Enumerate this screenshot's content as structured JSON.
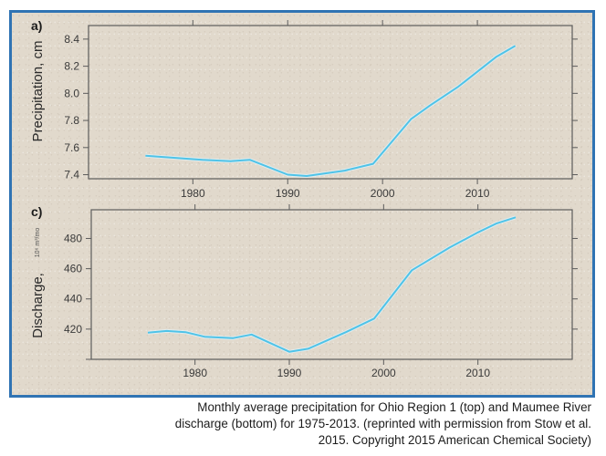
{
  "chart_data": [
    {
      "type": "line",
      "panel_label": "a)",
      "title": "",
      "xlabel": "",
      "ylabel": "Precipitation, cm",
      "x_ticks": [
        1980,
        1990,
        2000,
        2010
      ],
      "y_ticks": [
        "8.4",
        "8.2",
        "8.0",
        "7.8",
        "7.6",
        "7.4"
      ],
      "xlim": [
        1969,
        2020
      ],
      "ylim": [
        7.37,
        8.5
      ],
      "grid": false,
      "series": [
        {
          "name": "Precipitation",
          "color": "#4fc3e8",
          "x": [
            1975,
            1977,
            1981,
            1984,
            1986,
            1990,
            1992,
            1996,
            1999,
            2003,
            2005,
            2008,
            2012,
            2014
          ],
          "y": [
            7.54,
            7.53,
            7.51,
            7.5,
            7.51,
            7.4,
            7.39,
            7.43,
            7.48,
            7.81,
            7.91,
            8.05,
            8.27,
            8.35
          ]
        }
      ]
    },
    {
      "type": "line",
      "panel_label": "c)",
      "title": "",
      "xlabel": "",
      "ylabel": "Discharge,",
      "ylabel_unit": "10⁶ m³/mo",
      "x_ticks": [
        1980,
        1990,
        2000,
        2010
      ],
      "y_ticks": [
        "480",
        "460",
        "440",
        "420"
      ],
      "xlim": [
        1969,
        2020
      ],
      "ylim": [
        400,
        499
      ],
      "grid": false,
      "series": [
        {
          "name": "Discharge",
          "color": "#4fc3e8",
          "x": [
            1975,
            1977,
            1979,
            1981,
            1984,
            1986,
            1990,
            1992,
            1996,
            1999,
            2003,
            2007,
            2010,
            2012,
            2014
          ],
          "y": [
            417.6,
            418.8,
            418,
            415,
            414,
            416.4,
            405,
            407,
            418,
            427,
            459,
            474,
            484,
            490,
            494
          ]
        }
      ]
    }
  ],
  "caption": {
    "line1": "Monthly average precipitation for Ohio Region 1 (top) and Maumee River",
    "line2": "discharge (bottom) for 1975-2013. (reprinted with permission from Stow et al.",
    "line3": "2015. Copyright 2015 American Chemical Society)"
  }
}
